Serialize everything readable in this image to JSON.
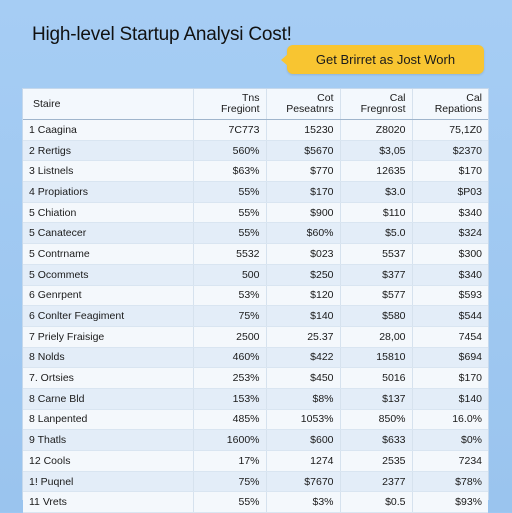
{
  "title": "High-level Startup Analysi Cost!",
  "cta": {
    "label": "Get Brirret as Jost Worh"
  },
  "table": {
    "headers": [
      "Staire",
      "Tns\nFregiont",
      "Cot\nPeseatnrs",
      "Cal\nFregnrost",
      "Cal\nRepations"
    ],
    "rows": [
      [
        "1  Caagina",
        "7C773",
        "15230",
        "Z8020",
        "75,1Z0"
      ],
      [
        "2  Rertigs",
        "560%",
        "$5670",
        "$3,05",
        "$2370"
      ],
      [
        "3  Listnels",
        "$63%",
        "$770",
        "12635",
        "$170"
      ],
      [
        "4  Propiatiors",
        "55%",
        "$170",
        "$3.0",
        "$P03"
      ],
      [
        "5  Chiation",
        "55%",
        "$900",
        "$110",
        "$340"
      ],
      [
        "5  Canatecer",
        "55%",
        "$60%",
        "$5.0",
        "$324"
      ],
      [
        "5  Contrname",
        "5532",
        "$023",
        "5537",
        "$300"
      ],
      [
        "5  Ocommets",
        "500",
        "$250",
        "$377",
        "$340"
      ],
      [
        "6  Genrpent",
        "53%",
        "$120",
        "$577",
        "$593"
      ],
      [
        "6  Conlter Feagiment",
        "75%",
        "$140",
        "$580",
        "$544"
      ],
      [
        "7  Priely Fraisige",
        "2500",
        "25.37",
        "28,00",
        "7454"
      ],
      [
        "8  Nolds",
        "460%",
        "$422",
        "15810",
        "$694"
      ],
      [
        "7.  Ortsies",
        "253%",
        "$450",
        "5016",
        "$170"
      ],
      [
        "8  Carne Bld",
        "153%",
        "$8%",
        "$137",
        "$140"
      ],
      [
        "8  Lanpented",
        "485%",
        "1053%",
        "850%",
        "16.0%"
      ],
      [
        "9  Thatls",
        "1600%",
        "$600",
        "$633",
        "$0%"
      ],
      [
        "12  Cools",
        "17%",
        "1274",
        "2535",
        "7234"
      ],
      [
        "1!  Puqnel",
        "75%",
        "$7670",
        "2377",
        "$78%"
      ],
      [
        "11  Vrets",
        "55%",
        "$3%",
        "$0.5",
        "$93%"
      ]
    ]
  }
}
